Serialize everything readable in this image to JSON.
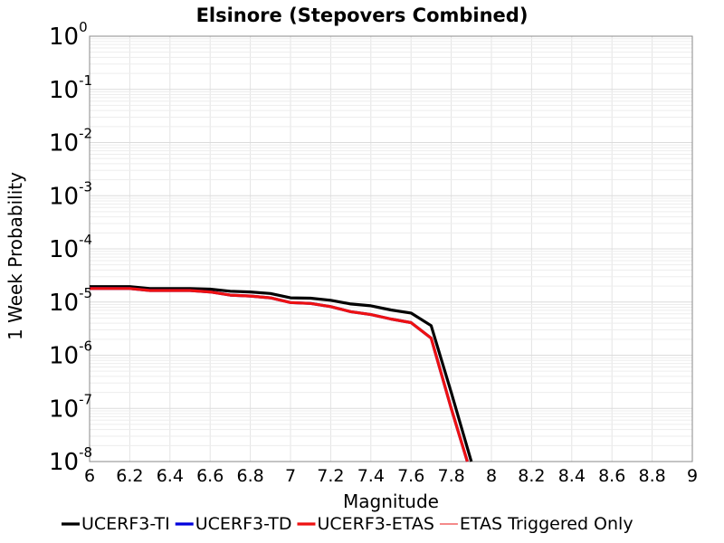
{
  "chart_data": {
    "type": "line",
    "title": "Elsinore (Stepovers Combined)",
    "xlabel": "Magnitude",
    "ylabel": "1 Week Probability",
    "xlim": [
      6,
      9
    ],
    "ylim": [
      1e-08,
      1
    ],
    "yscale": "log",
    "grid": true,
    "legend_position": "bottom",
    "x_ticks": [
      "6",
      "6.2",
      "6.4",
      "6.6",
      "6.8",
      "7",
      "7.2",
      "7.4",
      "7.6",
      "7.8",
      "8",
      "8.2",
      "8.4",
      "8.6",
      "8.8",
      "9"
    ],
    "y_ticks": [
      {
        "base": "10",
        "exp": "0"
      },
      {
        "base": "10",
        "exp": "-1"
      },
      {
        "base": "10",
        "exp": "-2"
      },
      {
        "base": "10",
        "exp": "-3"
      },
      {
        "base": "10",
        "exp": "-4"
      },
      {
        "base": "10",
        "exp": "-5"
      },
      {
        "base": "10",
        "exp": "-6"
      },
      {
        "base": "10",
        "exp": "-7"
      },
      {
        "base": "10",
        "exp": "-8"
      }
    ],
    "series": [
      {
        "name": "UCERF3-TI",
        "color": "#000000",
        "x": [
          6.0,
          6.1,
          6.2,
          6.3,
          6.4,
          6.5,
          6.6,
          6.7,
          6.8,
          6.9,
          7.0,
          7.1,
          7.2,
          7.3,
          7.4,
          7.5,
          7.6,
          7.7,
          7.8,
          7.9
        ],
        "y": [
          1.95e-05,
          1.95e-05,
          1.95e-05,
          1.8e-05,
          1.8e-05,
          1.8e-05,
          1.75e-05,
          1.6e-05,
          1.55e-05,
          1.45e-05,
          1.2e-05,
          1.18e-05,
          1.08e-05,
          9.2e-06,
          8.5e-06,
          7.1e-06,
          6.2e-06,
          3.6e-06,
          2e-07,
          1e-08
        ]
      },
      {
        "name": "UCERF3-TD",
        "color": "#0000dd",
        "x": [
          6.0,
          6.1,
          6.2,
          6.3,
          6.4,
          6.5,
          6.6,
          6.7,
          6.8,
          6.9,
          7.0,
          7.1,
          7.2,
          7.3,
          7.4,
          7.5,
          7.6,
          7.7,
          7.8,
          7.88
        ],
        "y": [
          1.8e-05,
          1.8e-05,
          1.8e-05,
          1.65e-05,
          1.65e-05,
          1.65e-05,
          1.55e-05,
          1.35e-05,
          1.3e-05,
          1.2e-05,
          9.8e-06,
          9.4e-06,
          8.2e-06,
          6.6e-06,
          5.8e-06,
          4.8e-06,
          4.1e-06,
          2.1e-06,
          1e-07,
          1e-08
        ]
      },
      {
        "name": "UCERF3-ETAS",
        "color": "#ee1111",
        "x": [
          6.0,
          6.1,
          6.2,
          6.3,
          6.4,
          6.5,
          6.6,
          6.7,
          6.8,
          6.9,
          7.0,
          7.1,
          7.2,
          7.3,
          7.4,
          7.5,
          7.6,
          7.7,
          7.8,
          7.88
        ],
        "y": [
          1.8e-05,
          1.8e-05,
          1.8e-05,
          1.65e-05,
          1.65e-05,
          1.65e-05,
          1.55e-05,
          1.35e-05,
          1.3e-05,
          1.2e-05,
          9.8e-06,
          9.4e-06,
          8.2e-06,
          6.6e-06,
          5.8e-06,
          4.8e-06,
          4.1e-06,
          2.1e-06,
          1e-07,
          1e-08
        ]
      },
      {
        "name": "ETAS Triggered Only",
        "color": "#ee4444",
        "x": [],
        "y": []
      }
    ]
  }
}
